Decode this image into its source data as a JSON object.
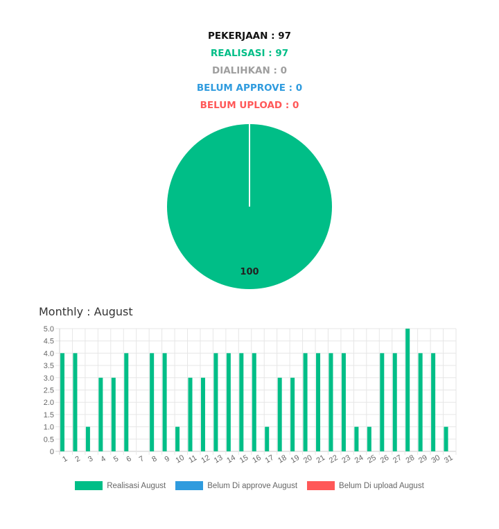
{
  "summary": [
    {
      "label": "PEKERJAAN",
      "value": "97",
      "color": "#111111"
    },
    {
      "label": "REALISASI",
      "value": "97",
      "color": "#00be87"
    },
    {
      "label": "DIALIHKAN",
      "value": "0",
      "color": "#9e9e9e"
    },
    {
      "label": "BELUM APPROVE",
      "value": "0",
      "color": "#2f9bde"
    },
    {
      "label": "BELUM UPLOAD",
      "value": "0",
      "color": "#ff5858"
    }
  ],
  "chart_data": [
    {
      "type": "pie",
      "slices": [
        {
          "value": 100,
          "label": "100",
          "color": "#00be87"
        }
      ]
    },
    {
      "type": "bar",
      "title": "Monthly : August",
      "categories": [
        "1",
        "2",
        "3",
        "4",
        "5",
        "6",
        "7",
        "8",
        "9",
        "10",
        "11",
        "12",
        "13",
        "14",
        "15",
        "16",
        "17",
        "18",
        "19",
        "20",
        "21",
        "22",
        "23",
        "24",
        "25",
        "26",
        "27",
        "28",
        "29",
        "30",
        "31"
      ],
      "series": [
        {
          "name": "Realisasi August",
          "color": "#00be87",
          "values": [
            4,
            4,
            1,
            3,
            3,
            4,
            0,
            4,
            4,
            1,
            3,
            3,
            4,
            4,
            4,
            4,
            1,
            3,
            3,
            4,
            4,
            4,
            4,
            1,
            1,
            4,
            4,
            5,
            4,
            4,
            1
          ]
        },
        {
          "name": "Belum Di approve August",
          "color": "#2f9bde",
          "values": [
            0,
            0,
            0,
            0,
            0,
            0,
            0,
            0,
            0,
            0,
            0,
            0,
            0,
            0,
            0,
            0,
            0,
            0,
            0,
            0,
            0,
            0,
            0,
            0,
            0,
            0,
            0,
            0,
            0,
            0,
            0
          ]
        },
        {
          "name": "Belum Di upload August",
          "color": "#ff5858",
          "values": [
            0,
            0,
            0,
            0,
            0,
            0,
            0,
            0,
            0,
            0,
            0,
            0,
            0,
            0,
            0,
            0,
            0,
            0,
            0,
            0,
            0,
            0,
            0,
            0,
            0,
            0,
            0,
            0,
            0,
            0,
            0
          ]
        }
      ],
      "ylim": [
        0,
        5
      ],
      "yticks": [
        "0",
        "0.5",
        "1.0",
        "1.5",
        "2.0",
        "2.5",
        "3.0",
        "3.5",
        "4.0",
        "4.5",
        "5.0"
      ],
      "grid": true,
      "legend_position": "bottom"
    }
  ]
}
